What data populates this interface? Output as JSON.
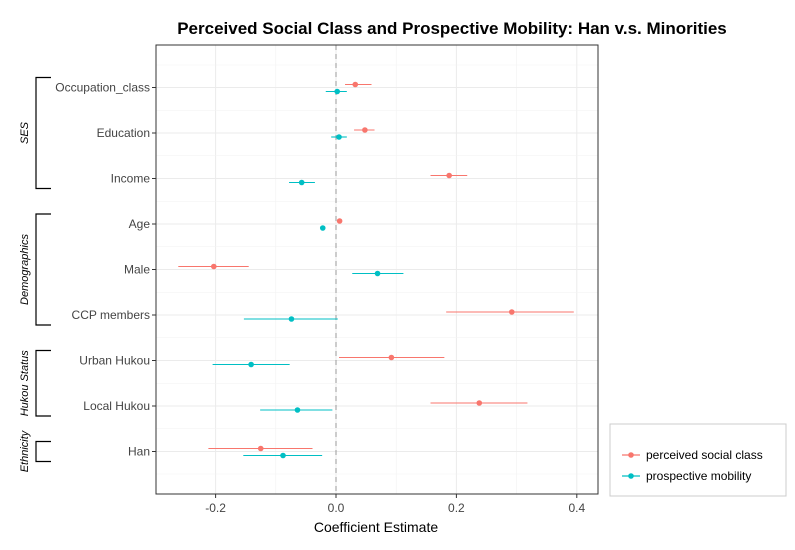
{
  "chart_data": {
    "type": "scatter",
    "title": "Perceived Social Class and Prospective Mobility: Han v.s. Minorities",
    "xlabel": "Coefficient Estimate",
    "ylabel": "",
    "xlim": [
      -0.3,
      0.43
    ],
    "xticks": [
      -0.2,
      0.0,
      0.2,
      0.4
    ],
    "xtick_labels": [
      "-0.2",
      "0.0",
      "0.2",
      "0.4"
    ],
    "reference_line": 0,
    "grid": true,
    "legend_position": "bottom-right",
    "categories": [
      "Occupation_class",
      "Education",
      "Income",
      "Age",
      "Male",
      "CCP members",
      "Urban Hukou",
      "Local Hukou",
      "Han"
    ],
    "groups": [
      {
        "label": "SES",
        "categories": [
          "Occupation_class",
          "Education",
          "Income"
        ]
      },
      {
        "label": "Demographics",
        "categories": [
          "Age",
          "Male",
          "CCP members"
        ]
      },
      {
        "label": "Hukou Status",
        "categories": [
          "Urban Hukou",
          "Local Hukou"
        ]
      },
      {
        "label": "Ethnicity",
        "categories": [
          "Han"
        ]
      }
    ],
    "series": [
      {
        "name": "perceived social class",
        "color": "#F8766D",
        "estimates": [
          0.032,
          0.048,
          0.188,
          0.006,
          -0.203,
          0.292,
          0.092,
          0.238,
          -0.125
        ],
        "ci_low": [
          0.015,
          0.03,
          0.157,
          0.004,
          -0.262,
          0.183,
          0.005,
          0.157,
          -0.212
        ],
        "ci_high": [
          0.059,
          0.064,
          0.218,
          0.008,
          -0.145,
          0.395,
          0.18,
          0.318,
          -0.039
        ]
      },
      {
        "name": "prospective mobility",
        "color": "#00BFC4",
        "estimates": [
          0.002,
          0.005,
          -0.057,
          -0.022,
          0.069,
          -0.074,
          -0.141,
          -0.064,
          -0.088
        ],
        "ci_low": [
          -0.017,
          -0.008,
          -0.078,
          -0.024,
          0.027,
          -0.153,
          -0.205,
          -0.126,
          -0.154
        ],
        "ci_high": [
          0.018,
          0.018,
          -0.035,
          -0.02,
          0.112,
          0.003,
          -0.077,
          -0.006,
          -0.023
        ]
      }
    ]
  }
}
